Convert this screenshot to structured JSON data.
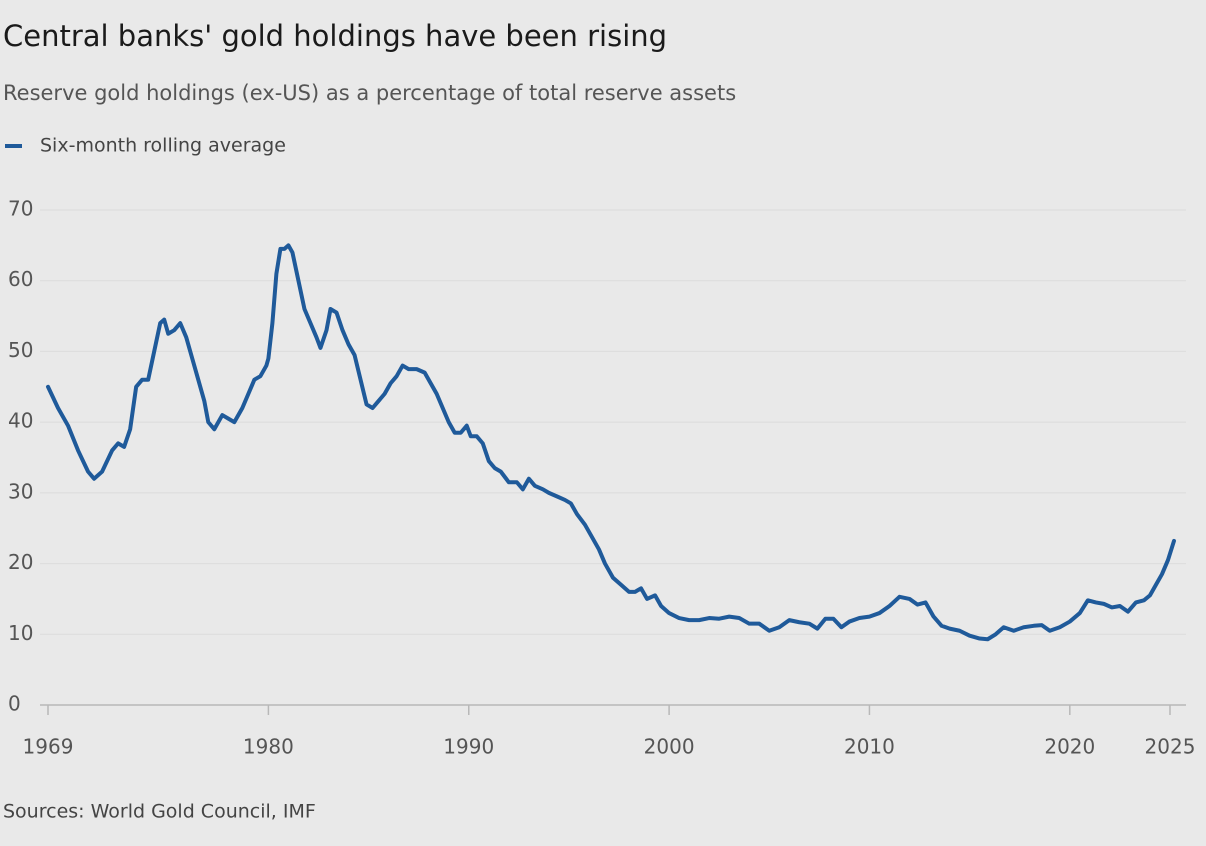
{
  "chart_data": {
    "type": "line",
    "title": "Central banks' gold holdings have been rising",
    "subtitle": "Reserve gold holdings (ex-US) as a percentage of total reserve assets",
    "source": "Sources: World Gold Council, IMF",
    "grid": true,
    "legend": "top-left",
    "xlim": [
      1969,
      2025.5
    ],
    "ylim": [
      0,
      70
    ],
    "xticks": [
      1969,
      1980,
      1990,
      2000,
      2010,
      2020,
      2025
    ],
    "yticks": [
      0,
      10,
      20,
      30,
      40,
      50,
      60,
      70
    ],
    "x": [
      1969.0,
      1969.5,
      1970.0,
      1970.5,
      1971.0,
      1971.3,
      1971.7,
      1972.2,
      1972.5,
      1972.8,
      1973.1,
      1973.4,
      1973.7,
      1974.0,
      1974.3,
      1974.6,
      1974.8,
      1975.0,
      1975.3,
      1975.6,
      1975.9,
      1976.2,
      1976.5,
      1976.8,
      1977.0,
      1977.3,
      1977.7,
      1978.0,
      1978.3,
      1978.7,
      1979.0,
      1979.3,
      1979.6,
      1979.9,
      1980.0,
      1980.2,
      1980.4,
      1980.6,
      1980.8,
      1981.0,
      1981.2,
      1981.5,
      1981.8,
      1982.1,
      1982.4,
      1982.6,
      1982.9,
      1983.1,
      1983.4,
      1983.7,
      1984.0,
      1984.3,
      1984.6,
      1984.9,
      1985.2,
      1985.5,
      1985.8,
      1986.1,
      1986.4,
      1986.7,
      1987.0,
      1987.4,
      1987.8,
      1988.1,
      1988.4,
      1988.7,
      1989.0,
      1989.3,
      1989.6,
      1989.9,
      1990.1,
      1990.4,
      1990.7,
      1991.0,
      1991.3,
      1991.6,
      1992.0,
      1992.4,
      1992.7,
      1993.0,
      1993.3,
      1993.7,
      1994.0,
      1994.4,
      1994.8,
      1995.1,
      1995.4,
      1995.8,
      1996.2,
      1996.5,
      1996.8,
      1997.2,
      1997.6,
      1998.0,
      1998.3,
      1998.6,
      1998.9,
      1999.3,
      1999.6,
      2000.0,
      2000.5,
      2001.0,
      2001.5,
      2002.0,
      2002.5,
      2003.0,
      2003.5,
      2004.0,
      2004.5,
      2005.0,
      2005.5,
      2006.0,
      2006.5,
      2007.0,
      2007.4,
      2007.8,
      2008.2,
      2008.6,
      2009.0,
      2009.5,
      2010.0,
      2010.5,
      2011.0,
      2011.5,
      2012.0,
      2012.4,
      2012.8,
      2013.2,
      2013.6,
      2014.0,
      2014.5,
      2015.0,
      2015.5,
      2015.9,
      2016.3,
      2016.7,
      2017.2,
      2017.7,
      2018.2,
      2018.6,
      2019.0,
      2019.5,
      2020.0,
      2020.5,
      2020.9,
      2021.3,
      2021.7,
      2022.1,
      2022.5,
      2022.9,
      2023.3,
      2023.7,
      2024.0,
      2024.3,
      2024.6,
      2024.9,
      2025.2
    ],
    "series": [
      {
        "name": "Six-month rolling average",
        "color": "#1f5a9a",
        "values": [
          45,
          42,
          39.5,
          36,
          33,
          32,
          33,
          36,
          37,
          36.5,
          39,
          45,
          46,
          46,
          50,
          54,
          54.5,
          52.5,
          53,
          54,
          52,
          49,
          46,
          43,
          40,
          39,
          41,
          40.5,
          40,
          42,
          44,
          46,
          46.5,
          48,
          49,
          54,
          61,
          64.5,
          64.5,
          65,
          64,
          60,
          56,
          54,
          52,
          50.5,
          53,
          56,
          55.5,
          53,
          51,
          49.5,
          46,
          42.5,
          42,
          43,
          44,
          45.5,
          46.5,
          48,
          47.5,
          47.5,
          47,
          45.5,
          44,
          42,
          40,
          38.5,
          38.5,
          39.5,
          38,
          38,
          37,
          34.5,
          33.5,
          33,
          31.5,
          31.5,
          30.5,
          32,
          31,
          30.5,
          30,
          29.5,
          29,
          28.5,
          27,
          25.5,
          23.5,
          22,
          20,
          18,
          17,
          16,
          16,
          16.5,
          15,
          15.5,
          14,
          13,
          12.3,
          12,
          12,
          12.3,
          12.2,
          12.5,
          12.3,
          11.5,
          11.5,
          10.5,
          11,
          12,
          11.7,
          11.5,
          10.8,
          12.2,
          12.2,
          11,
          11.8,
          12.3,
          12.5,
          13,
          14,
          15.3,
          15,
          14.2,
          14.5,
          12.5,
          11.2,
          10.8,
          10.5,
          9.8,
          9.4,
          9.3,
          10,
          11,
          10.5,
          11,
          11.2,
          11.3,
          10.5,
          11,
          11.8,
          13,
          14.8,
          14.5,
          14.3,
          13.8,
          14,
          13.2,
          14.5,
          14.8,
          15.5,
          17,
          18.5,
          20.5,
          23.2
        ]
      }
    ]
  }
}
